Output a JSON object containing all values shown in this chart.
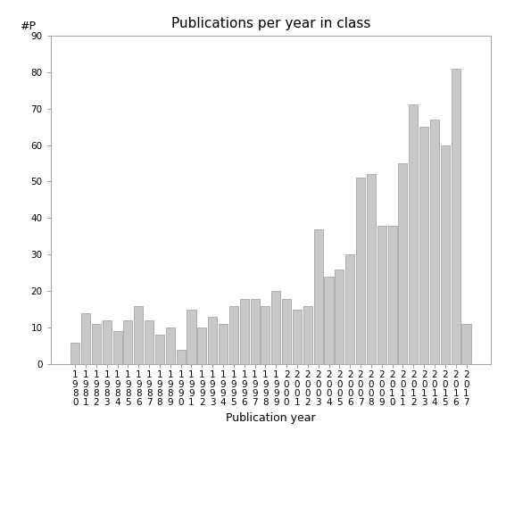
{
  "title": "Publications per year in class",
  "xlabel": "Publication year",
  "ylabel": "#P",
  "years": [
    "1980",
    "1981",
    "1982",
    "1983",
    "1984",
    "1985",
    "1986",
    "1987",
    "1988",
    "1989",
    "1990",
    "1991",
    "1992",
    "1993",
    "1994",
    "1995",
    "1996",
    "1997",
    "1998",
    "1999",
    "2000",
    "2001",
    "2002",
    "2003",
    "2004",
    "2005",
    "2006",
    "2007",
    "2008",
    "2009",
    "2010",
    "2011",
    "2012",
    "2013",
    "2014",
    "2015",
    "2016",
    "2017"
  ],
  "values": [
    6,
    14,
    11,
    12,
    9,
    12,
    16,
    12,
    8,
    10,
    4,
    15,
    10,
    13,
    11,
    16,
    18,
    18,
    16,
    20,
    18,
    15,
    16,
    37,
    24,
    26,
    30,
    51,
    52,
    38,
    38,
    55,
    71,
    65,
    67,
    60,
    81,
    11
  ],
  "bar_color": "#c8c8c8",
  "bar_edgecolor": "#999999",
  "ylim": [
    0,
    90
  ],
  "yticks": [
    0,
    10,
    20,
    30,
    40,
    50,
    60,
    70,
    80,
    90
  ],
  "background_color": "#ffffff",
  "title_fontsize": 11,
  "label_fontsize": 9,
  "tick_fontsize": 7.5
}
